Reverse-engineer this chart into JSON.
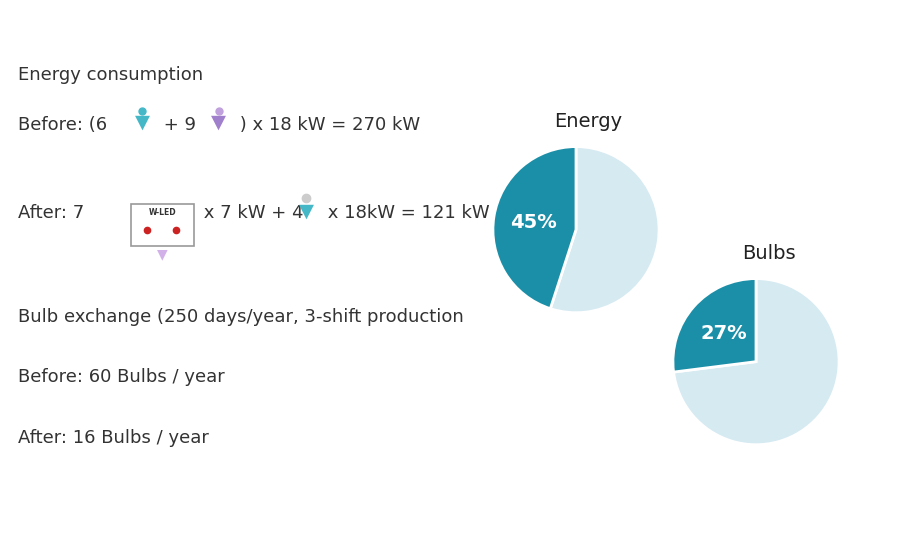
{
  "background_color": "#ffffff",
  "teal_color": "#1b8fa8",
  "light_blue": "#d6eaf2",
  "text_color": "#333333",
  "pie1_title": "Energy",
  "pie1_pct": 45,
  "pie1_label": "45%",
  "pie2_title": "Bulbs",
  "pie2_pct": 27,
  "pie2_label": "27%",
  "font_size": 13
}
